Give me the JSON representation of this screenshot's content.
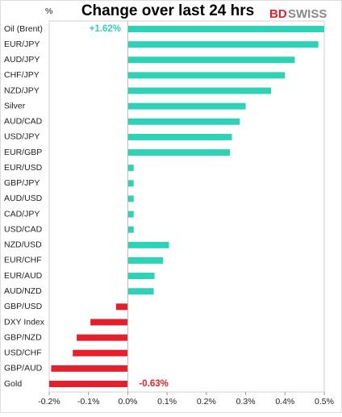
{
  "chart_data": {
    "type": "bar",
    "orientation": "horizontal",
    "title": "Change over last 24 hrs",
    "unit_label": "%",
    "logo": [
      "BD",
      "SWISS"
    ],
    "categories": [
      "Oil (Brent)",
      "EUR/JPY",
      "AUD/JPY",
      "CHF/JPY",
      "NZD/JPY",
      "Silver",
      "AUD/CAD",
      "USD/JPY",
      "EUR/GBP",
      "EUR/USD",
      "GBP/JPY",
      "AUD/USD",
      "CAD/JPY",
      "USD/CAD",
      "NZD/USD",
      "EUR/CHF",
      "EUR/AUD",
      "AUD/NZD",
      "GBP/USD",
      "DXY Index",
      "GBP/NZD",
      "USD/CHF",
      "GBP/AUD",
      "Gold"
    ],
    "values": [
      1.62,
      0.485,
      0.425,
      0.4,
      0.365,
      0.3,
      0.285,
      0.265,
      0.26,
      0.015,
      0.015,
      0.015,
      0.015,
      0.015,
      0.105,
      0.09,
      0.068,
      0.066,
      -0.03,
      -0.095,
      -0.13,
      -0.14,
      -0.195,
      -0.63
    ],
    "value_labels": [
      "+1.62%",
      null,
      null,
      null,
      null,
      null,
      null,
      null,
      null,
      null,
      null,
      null,
      null,
      null,
      null,
      null,
      null,
      null,
      null,
      null,
      null,
      null,
      null,
      "-0.63%"
    ],
    "positive_color": "#2ed3b7",
    "negative_color": "#e3202b",
    "xlim": [
      -0.2,
      0.5
    ],
    "xticks": [
      {
        "value": -0.2,
        "label": "-0.2%"
      },
      {
        "value": -0.1,
        "label": "-0.1%"
      },
      {
        "value": 0,
        "label": "0.0%"
      },
      {
        "value": 0.1,
        "label": "0.1%"
      },
      {
        "value": 0.2,
        "label": "0.2%"
      },
      {
        "value": 0.3,
        "label": "0.3%"
      },
      {
        "value": 0.4,
        "label": "0.4%"
      },
      {
        "value": 0.5,
        "label": "0.5%"
      }
    ]
  }
}
